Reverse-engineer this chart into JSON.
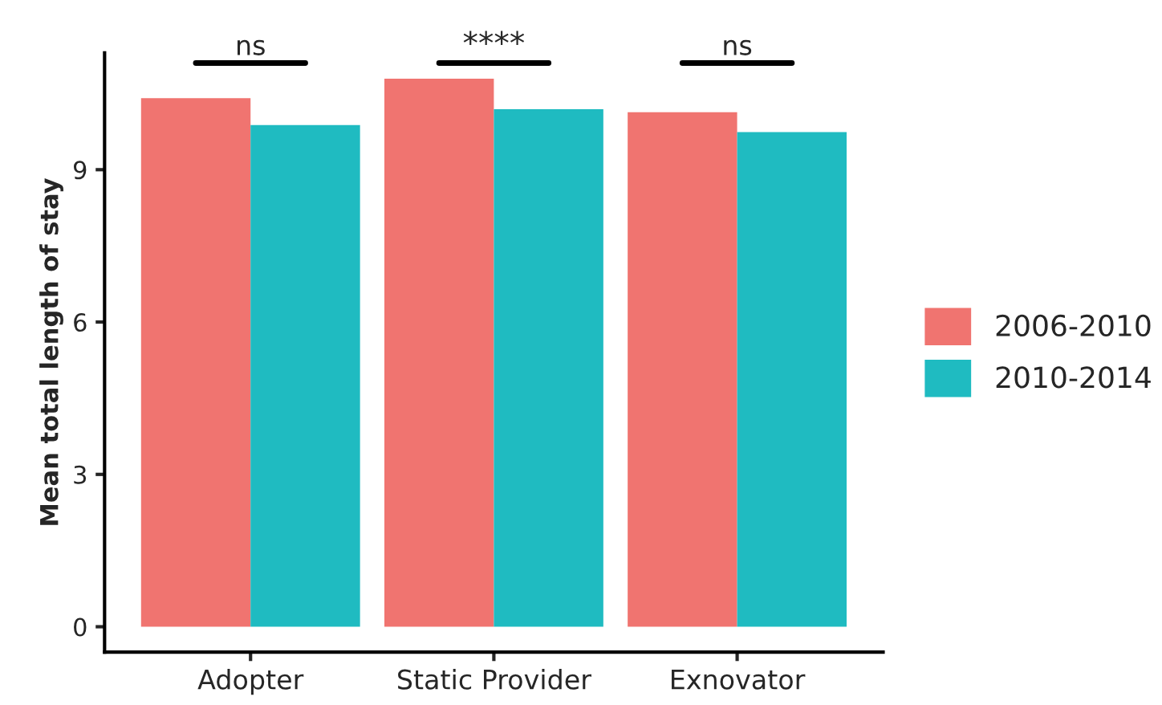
{
  "chart_data": {
    "type": "bar",
    "ylabel": "Mean total length of stay",
    "categories": [
      "Adopter",
      "Static Provider",
      "Exnovator"
    ],
    "series": [
      {
        "name": "2006-2010",
        "color": "#f07470",
        "values": [
          10.41,
          10.79,
          10.13
        ]
      },
      {
        "name": "2010-2014",
        "color": "#1fbbc1",
        "values": [
          9.88,
          10.19,
          9.74
        ]
      }
    ],
    "ylim": [
      -0.5,
      11.3
    ],
    "yticks": [
      0,
      3,
      6,
      9
    ],
    "grid": false,
    "legend": "right",
    "annotations": [
      "ns",
      "****",
      "ns"
    ]
  }
}
